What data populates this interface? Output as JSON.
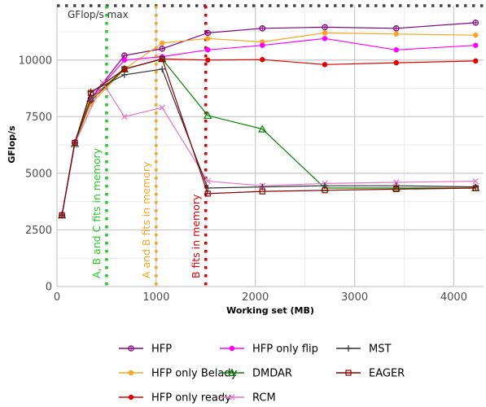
{
  "chart_data": {
    "type": "line",
    "xlabel": "Working set (MB)",
    "ylabel": "GFlop/s",
    "xlim": [
      0,
      4300
    ],
    "ylim": [
      0,
      12400
    ],
    "xticks": [
      0,
      1000,
      2000,
      3000,
      4000
    ],
    "yticks": [
      0,
      2500,
      5000,
      7500,
      10000
    ],
    "grid": true,
    "legend_position": "bottom",
    "reference_line": {
      "label": "GFlop/s max",
      "y": 12400,
      "color": "#444444"
    },
    "vertical_lines": [
      {
        "label": "A, B and C fits in memory",
        "x": 500,
        "color": "#22cc22"
      },
      {
        "label": "A and B fits in memory",
        "x": 1000,
        "color": "#f5a623"
      },
      {
        "label": "B fits in memory",
        "x": 1500,
        "color": "#e00000"
      }
    ],
    "series": [
      {
        "name": "HFP",
        "color": "#800080",
        "marker": "circle-cross",
        "x": [
          50,
          180,
          340,
          680,
          1060,
          1520,
          2070,
          2700,
          3420,
          4220
        ],
        "y": [
          3150,
          6350,
          8300,
          10200,
          10500,
          11200,
          11400,
          11450,
          11400,
          11650
        ]
      },
      {
        "name": "HFP only Belady",
        "color": "#f5a623",
        "marker": "dot",
        "x": [
          50,
          180,
          340,
          680,
          1060,
          1520,
          2070,
          2700,
          3420,
          4220
        ],
        "y": [
          3150,
          6350,
          8050,
          9600,
          10750,
          10950,
          10800,
          11200,
          11150,
          11100
        ]
      },
      {
        "name": "HFP only ready",
        "color": "#e00000",
        "marker": "dot",
        "x": [
          50,
          180,
          340,
          680,
          1060,
          1520,
          2070,
          2700,
          3420,
          4220
        ],
        "y": [
          3150,
          6350,
          8200,
          9600,
          10050,
          10000,
          10020,
          9800,
          9880,
          9960
        ]
      },
      {
        "name": "HFP only flip",
        "color": "#ff00ff",
        "marker": "dot",
        "x": [
          50,
          180,
          340,
          680,
          1060,
          1520,
          2070,
          2700,
          3420,
          4220
        ],
        "y": [
          3150,
          6350,
          8300,
          10000,
          10150,
          10450,
          10650,
          10950,
          10450,
          10650
        ]
      },
      {
        "name": "DMDAR",
        "color": "#008000",
        "marker": "triangle",
        "x": [
          50,
          180,
          340,
          680,
          1060,
          1520,
          2070,
          2700,
          3420,
          4220
        ],
        "y": [
          3150,
          6300,
          8300,
          9600,
          10050,
          7550,
          6950,
          4350,
          4350,
          4350
        ]
      },
      {
        "name": "RCM",
        "color": "#e377c2",
        "marker": "x",
        "x": [
          50,
          180,
          460,
          680,
          1060,
          1520,
          2070,
          2700,
          3420,
          4220
        ],
        "y": [
          3150,
          6300,
          9000,
          7500,
          7900,
          4650,
          4450,
          4550,
          4600,
          4650
        ]
      },
      {
        "name": "MST",
        "color": "#333333",
        "marker": "plus",
        "x": [
          50,
          180,
          340,
          680,
          1060,
          1520,
          2070,
          2700,
          3420,
          4220
        ],
        "y": [
          3150,
          6350,
          8600,
          9350,
          9600,
          4350,
          4400,
          4450,
          4450,
          4400
        ]
      },
      {
        "name": "EAGER",
        "color": "#8b0000",
        "marker": "square",
        "x": [
          50,
          180,
          340,
          680,
          1060,
          1520,
          2070,
          2700,
          3420,
          4220
        ],
        "y": [
          3150,
          6350,
          8550,
          9600,
          10050,
          4100,
          4200,
          4250,
          4300,
          4350
        ]
      }
    ]
  }
}
